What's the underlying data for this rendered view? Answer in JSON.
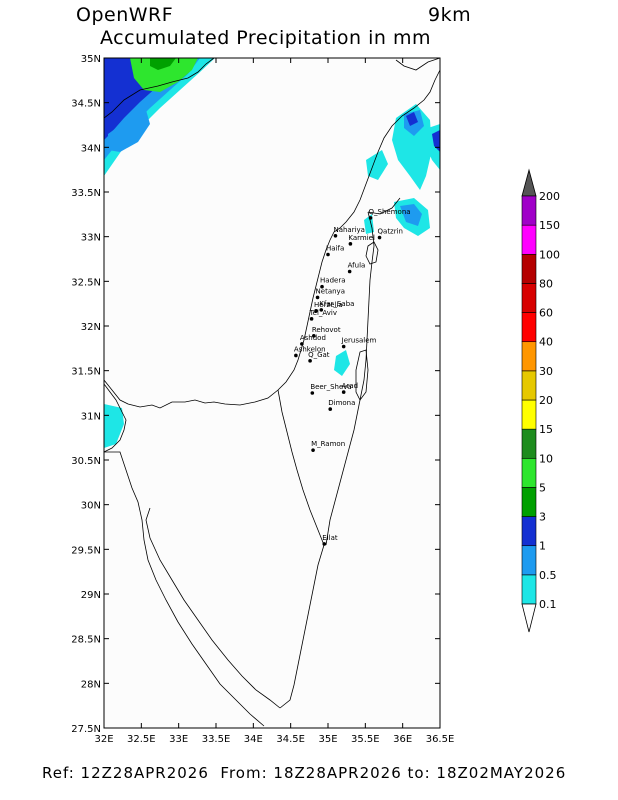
{
  "header": {
    "model": "OpenWRF",
    "resolution": "9km",
    "title": "Accumulated Precipitation in mm"
  },
  "footer": {
    "text": "Ref: 12Z28APR2026  From: 18Z28APR2026 to: 18Z02MAY2026"
  },
  "map": {
    "lon_range": [
      32,
      36.5
    ],
    "lat_range": [
      27.5,
      35
    ],
    "lon_ticks": [
      "32E",
      "32.5E",
      "33E",
      "33.5E",
      "34E",
      "34.5E",
      "35E",
      "35.5E",
      "36E",
      "36.5E"
    ],
    "lat_ticks": [
      "27.5N",
      "28N",
      "28.5N",
      "29N",
      "29.5N",
      "30N",
      "30.5N",
      "31N",
      "31.5N",
      "32N",
      "32.5N",
      "33N",
      "33.5N",
      "34N",
      "34.5N",
      "35N"
    ],
    "cities": [
      {
        "name": "Q_Shemona",
        "lon": 35.57,
        "lat": 33.21
      },
      {
        "name": "Nahariya",
        "lon": 35.1,
        "lat": 33.01
      },
      {
        "name": "Qatzrin",
        "lon": 35.69,
        "lat": 32.99
      },
      {
        "name": "Karmiel",
        "lon": 35.3,
        "lat": 32.92
      },
      {
        "name": "Haifa",
        "lon": 35.0,
        "lat": 32.8
      },
      {
        "name": "Afula",
        "lon": 35.29,
        "lat": 32.61
      },
      {
        "name": "Hadera",
        "lon": 34.92,
        "lat": 32.44
      },
      {
        "name": "Netanya",
        "lon": 34.86,
        "lat": 32.32
      },
      {
        "name": "Herzelia",
        "lon": 34.84,
        "lat": 32.17
      },
      {
        "name": "Kfar_Saba",
        "lon": 34.91,
        "lat": 32.18
      },
      {
        "name": "Tel_Aviv",
        "lon": 34.78,
        "lat": 32.08
      },
      {
        "name": "Rehovot",
        "lon": 34.81,
        "lat": 31.89
      },
      {
        "name": "Ashdod",
        "lon": 34.65,
        "lat": 31.8
      },
      {
        "name": "Ashkelon",
        "lon": 34.57,
        "lat": 31.67
      },
      {
        "name": "Jerusalem",
        "lon": 35.21,
        "lat": 31.77
      },
      {
        "name": "Q_Gat",
        "lon": 34.76,
        "lat": 31.61
      },
      {
        "name": "Beer_Sheva",
        "lon": 34.79,
        "lat": 31.25
      },
      {
        "name": "Arad",
        "lon": 35.21,
        "lat": 31.26
      },
      {
        "name": "Dimona",
        "lon": 35.03,
        "lat": 31.07
      },
      {
        "name": "M_Ramon",
        "lon": 34.8,
        "lat": 30.61
      },
      {
        "name": "Eilat",
        "lon": 34.95,
        "lat": 29.56
      }
    ]
  },
  "legend": {
    "levels": [
      "0.1",
      "0.5",
      "1",
      "3",
      "5",
      "10",
      "15",
      "20",
      "30",
      "40",
      "60",
      "80",
      "100",
      "150",
      "200"
    ],
    "colors": [
      "#1ee6e6",
      "#1e9bf0",
      "#1430d2",
      "#00a000",
      "#2ee62e",
      "#1e8c1e",
      "#ffff00",
      "#e6c800",
      "#ff9600",
      "#ff0000",
      "#d70000",
      "#b40000",
      "#ff00ff",
      "#a000c8",
      "#9060c0"
    ],
    "top_color": "#555555",
    "bottom_color": "#ffffff"
  },
  "rain_colors": {
    "light": "#1ee6e6",
    "medium": "#1e9bf0",
    "dark": "#1430d2",
    "green": "#2ee62e",
    "darkgreen": "#00a000"
  }
}
